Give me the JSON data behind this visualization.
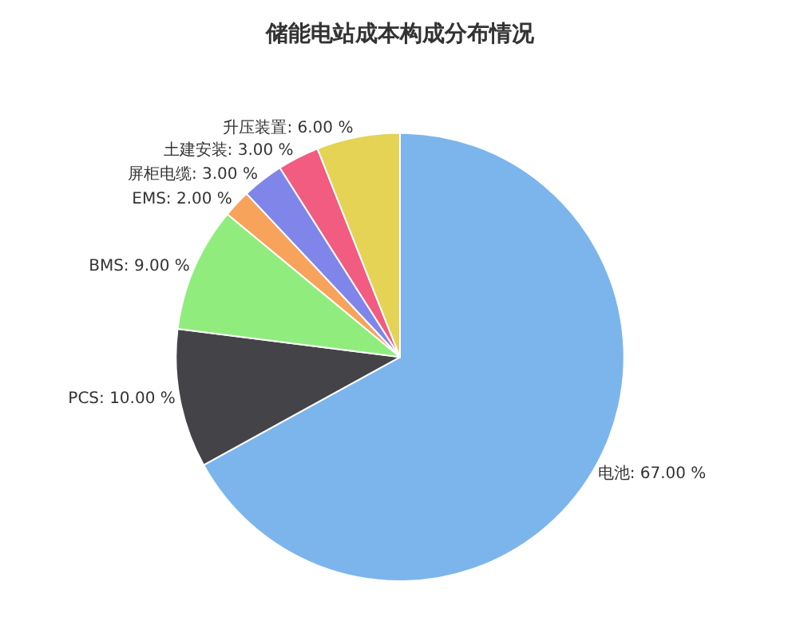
{
  "chart_data": {
    "type": "pie",
    "title": "储能电站成本构成分布情况",
    "categories": [
      "电池",
      "PCS",
      "BMS",
      "EMS",
      "屏柜电缆",
      "土建安装",
      "升压装置"
    ],
    "values": [
      67,
      10,
      9,
      2,
      3,
      3,
      6
    ],
    "value_labels": [
      "67.00 %",
      "10.00 %",
      "9.00 %",
      "2.00 %",
      "3.00 %",
      "3.00 %",
      "6.00 %"
    ],
    "colors": [
      "#7cb5ec",
      "#434348",
      "#90ed7d",
      "#f7a35c",
      "#8085e9",
      "#f15c80",
      "#e4d354"
    ],
    "legend": false
  }
}
